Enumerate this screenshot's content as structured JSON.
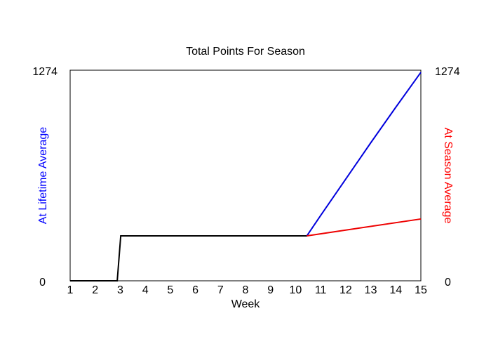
{
  "chart_data": {
    "type": "line",
    "title": "Total Points For Season",
    "xlabel": "Week",
    "ylabel_left": "At Lifetime Average",
    "ylabel_right": "At Season Average",
    "xlim": [
      1,
      15
    ],
    "ylim": [
      0,
      1274
    ],
    "x_ticks": [
      1,
      2,
      3,
      4,
      5,
      6,
      7,
      8,
      9,
      10,
      11,
      12,
      13,
      14,
      15
    ],
    "y_ticks_left": [
      "0",
      "1274"
    ],
    "y_ticks_right": [
      "0",
      "1274"
    ],
    "grid": false,
    "colors": {
      "left_label": "#0000ff",
      "right_label": "#ff0000",
      "axis": "#000000"
    },
    "series": [
      {
        "color": "#000000",
        "points": [
          [
            1,
            0
          ],
          [
            2.88,
            0
          ],
          [
            3.02,
            272
          ],
          [
            10.45,
            272
          ]
        ]
      },
      {
        "color": "#0000dd",
        "points": [
          [
            10.45,
            272
          ],
          [
            11,
            395
          ],
          [
            12,
            615
          ],
          [
            13,
            835
          ],
          [
            14,
            1050
          ],
          [
            15,
            1261
          ]
        ]
      },
      {
        "color": "#ee0000",
        "points": [
          [
            10.45,
            272
          ],
          [
            15,
            374
          ]
        ]
      }
    ]
  }
}
